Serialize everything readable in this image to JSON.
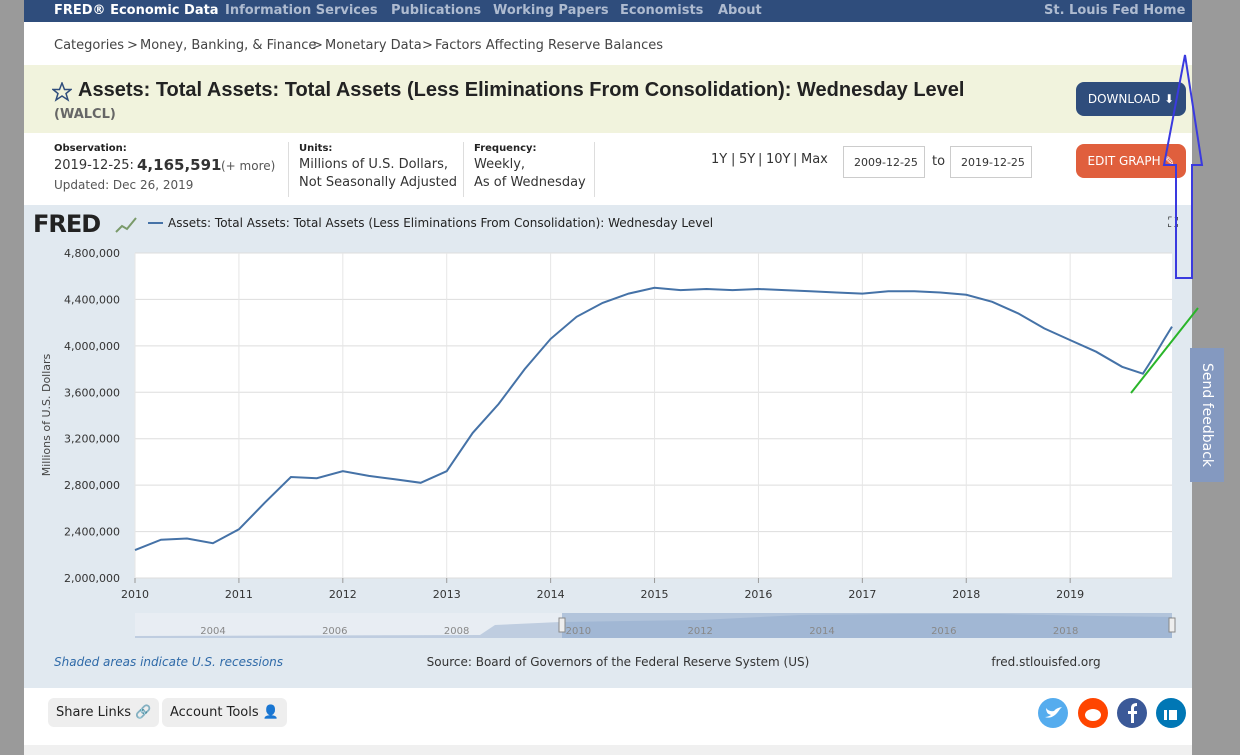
{
  "nav": {
    "brand": "FRED® Economic Data",
    "links": [
      "Information Services",
      "Publications",
      "Working Papers",
      "Economists",
      "About"
    ],
    "home": "St. Louis Fed Home"
  },
  "breadcrumb": {
    "items": [
      "Categories",
      "Money, Banking, & Finance",
      "Monetary Data",
      "Factors Affecting Reserve Balances"
    ],
    "separator": ">"
  },
  "header": {
    "title": "Assets: Total Assets: Total Assets (Less Eliminations From Consolidation): Wednesday Level",
    "series_id": "(WALCL)",
    "download": "DOWNLOAD",
    "edit": "EDIT GRAPH"
  },
  "info": {
    "observation_label": "Observation:",
    "observation_date": "2019-12-25:",
    "observation_value": "4,165,591",
    "more": "(+ more)",
    "updated": "Updated: Dec 26, 2019",
    "units_label": "Units:",
    "units": [
      "Millions of U.S. Dollars,",
      "Not Seasonally Adjusted"
    ],
    "frequency_label": "Frequency:",
    "frequency": [
      "Weekly,",
      "As of Wednesday"
    ],
    "ranges": [
      "1Y",
      "5Y",
      "10Y",
      "Max"
    ],
    "range_separator": "|",
    "start_date": "2009-12-25",
    "to": "to",
    "end_date": "2019-12-25"
  },
  "chart_data": {
    "type": "line",
    "logo": "FRED",
    "y_label": "Millions of U.S. Dollars",
    "x": [
      2010.0,
      2010.25,
      2010.5,
      2010.75,
      2011.0,
      2011.25,
      2011.5,
      2011.75,
      2012.0,
      2012.25,
      2012.5,
      2012.75,
      2013.0,
      2013.25,
      2013.5,
      2013.75,
      2014.0,
      2014.25,
      2014.5,
      2014.75,
      2015.0,
      2015.25,
      2015.5,
      2015.75,
      2016.0,
      2016.25,
      2016.5,
      2016.75,
      2017.0,
      2017.25,
      2017.5,
      2017.75,
      2018.0,
      2018.25,
      2018.5,
      2018.75,
      2019.0,
      2019.25,
      2019.5,
      2019.7,
      2019.8,
      2019.9,
      2019.98
    ],
    "series": [
      {
        "name": "Assets: Total Assets: Total Assets (Less Eliminations From Consolidation): Wednesday Level",
        "color": "#4572a7",
        "values": [
          2240000,
          2330000,
          2340000,
          2300000,
          2420000,
          2650000,
          2870000,
          2860000,
          2920000,
          2880000,
          2850000,
          2820000,
          2920000,
          3250000,
          3500000,
          3800000,
          4060000,
          4250000,
          4370000,
          4450000,
          4500000,
          4480000,
          4490000,
          4480000,
          4490000,
          4480000,
          4470000,
          4460000,
          4450000,
          4470000,
          4470000,
          4460000,
          4440000,
          4380000,
          4280000,
          4150000,
          4050000,
          3950000,
          3820000,
          3760000,
          3900000,
          4050000,
          4165591
        ]
      }
    ],
    "xlim": [
      2010,
      2019.98
    ],
    "xticks": [
      2010,
      2011,
      2012,
      2013,
      2014,
      2015,
      2016,
      2017,
      2018,
      2019
    ],
    "ylim": [
      2000000,
      4800000
    ],
    "yticks": [
      {
        "value": 2000000,
        "label": "2,000,000"
      },
      {
        "value": 2400000,
        "label": "2,400,000"
      },
      {
        "value": 2800000,
        "label": "2,800,000"
      },
      {
        "value": 3200000,
        "label": "3,200,000"
      },
      {
        "value": 3600000,
        "label": "3,600,000"
      },
      {
        "value": 4000000,
        "label": "4,000,000"
      },
      {
        "value": 4400000,
        "label": "4,400,000"
      },
      {
        "value": 4800000,
        "label": "4,800,000"
      }
    ],
    "grid": true
  },
  "navigator": {
    "labels": [
      "2004",
      "2006",
      "2008",
      "2010",
      "2012",
      "2014",
      "2016",
      "2018"
    ]
  },
  "footer": {
    "recessions": "Shaded areas indicate U.S. recessions",
    "source": "Source: Board of Governors of the Federal Reserve System (US)",
    "site": "fred.stlouisfed.org"
  },
  "tools": {
    "share": "Share Links",
    "account": "Account Tools"
  },
  "feedback": "Send feedback"
}
